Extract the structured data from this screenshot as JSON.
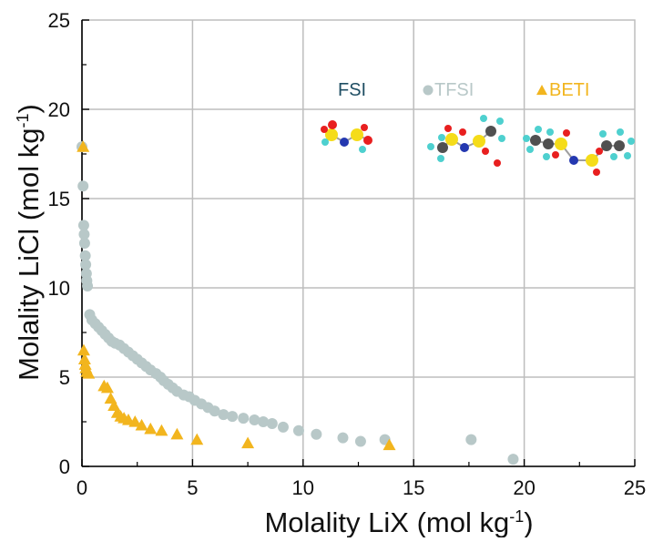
{
  "chart_data": {
    "type": "scatter",
    "xlabel": "Molality LiX (mol kg",
    "xlabel_sup": "-1",
    "xlabel_end": ")",
    "ylabel": "Molality LiCl (mol kg",
    "ylabel_sup": "-1",
    "ylabel_end": ")",
    "xlim": [
      0,
      25
    ],
    "ylim": [
      0,
      25
    ],
    "xticks": [
      0,
      5,
      10,
      15,
      20,
      25
    ],
    "yticks": [
      0,
      5,
      10,
      15,
      20,
      25
    ],
    "xtick_labels": [
      "0",
      "5",
      "10",
      "15",
      "20",
      "25"
    ],
    "ytick_labels": [
      "0",
      "5",
      "10",
      "15",
      "20",
      "25"
    ],
    "grid": true,
    "legend_position": "top-right",
    "colors": {
      "FSI": "#1f4e63",
      "TFSI": "#b8c8c8",
      "BETI": "#f2b51e",
      "grid": "#bdbdbd",
      "axis": "#000000",
      "text": "#111111"
    },
    "series": [
      {
        "name": "FSI",
        "marker": "none",
        "points": []
      },
      {
        "name": "TFSI",
        "marker": "circle",
        "points": [
          [
            0.0,
            17.9
          ],
          [
            0.05,
            15.7
          ],
          [
            0.08,
            13.5
          ],
          [
            0.1,
            13.0
          ],
          [
            0.12,
            12.5
          ],
          [
            0.15,
            11.8
          ],
          [
            0.17,
            11.3
          ],
          [
            0.2,
            10.8
          ],
          [
            0.22,
            10.4
          ],
          [
            0.25,
            10.1
          ],
          [
            0.35,
            8.5
          ],
          [
            0.45,
            8.2
          ],
          [
            0.6,
            8.0
          ],
          [
            0.75,
            7.8
          ],
          [
            0.9,
            7.6
          ],
          [
            1.05,
            7.4
          ],
          [
            1.2,
            7.2
          ],
          [
            1.35,
            7.0
          ],
          [
            1.5,
            6.9
          ],
          [
            1.7,
            6.8
          ],
          [
            1.9,
            6.6
          ],
          [
            2.1,
            6.4
          ],
          [
            2.3,
            6.2
          ],
          [
            2.5,
            6.0
          ],
          [
            2.7,
            5.8
          ],
          [
            2.9,
            5.6
          ],
          [
            3.1,
            5.4
          ],
          [
            3.35,
            5.2
          ],
          [
            3.55,
            5.0
          ],
          [
            3.7,
            4.8
          ],
          [
            3.9,
            4.6
          ],
          [
            4.1,
            4.4
          ],
          [
            4.3,
            4.2
          ],
          [
            4.6,
            4.0
          ],
          [
            4.85,
            3.9
          ],
          [
            5.1,
            3.7
          ],
          [
            5.4,
            3.5
          ],
          [
            5.7,
            3.3
          ],
          [
            6.0,
            3.1
          ],
          [
            6.4,
            2.9
          ],
          [
            6.8,
            2.8
          ],
          [
            7.3,
            2.7
          ],
          [
            7.8,
            2.6
          ],
          [
            8.2,
            2.5
          ],
          [
            8.6,
            2.4
          ],
          [
            9.1,
            2.2
          ],
          [
            9.8,
            2.0
          ],
          [
            10.6,
            1.8
          ],
          [
            11.8,
            1.6
          ],
          [
            12.6,
            1.4
          ],
          [
            13.7,
            1.5
          ],
          [
            17.6,
            1.5
          ],
          [
            19.5,
            0.4
          ]
        ]
      },
      {
        "name": "BETI",
        "marker": "triangle",
        "points": [
          [
            0.05,
            17.9
          ],
          [
            0.08,
            6.5
          ],
          [
            0.12,
            6.0
          ],
          [
            0.15,
            5.7
          ],
          [
            0.18,
            5.5
          ],
          [
            0.22,
            5.3
          ],
          [
            0.3,
            5.2
          ],
          [
            1.0,
            4.5
          ],
          [
            1.15,
            4.4
          ],
          [
            1.3,
            3.8
          ],
          [
            1.45,
            3.4
          ],
          [
            1.6,
            3.0
          ],
          [
            1.75,
            2.8
          ],
          [
            1.9,
            2.7
          ],
          [
            2.1,
            2.6
          ],
          [
            2.4,
            2.5
          ],
          [
            2.7,
            2.3
          ],
          [
            3.1,
            2.1
          ],
          [
            3.6,
            2.0
          ],
          [
            4.3,
            1.8
          ],
          [
            5.2,
            1.5
          ],
          [
            7.5,
            1.3
          ],
          [
            13.9,
            1.2
          ]
        ]
      }
    ]
  },
  "legend": [
    {
      "label": "FSI",
      "symbol": "none",
      "color": "#1f4e63"
    },
    {
      "label": "TFSI",
      "symbol": "circle",
      "color": "#b8c8c8"
    },
    {
      "label": "BETI",
      "symbol": "triangle",
      "color": "#f2b51e"
    }
  ]
}
